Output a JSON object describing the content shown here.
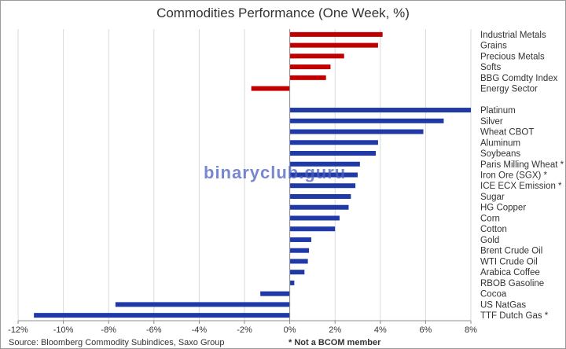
{
  "chart_data": {
    "type": "bar",
    "orientation": "horizontal",
    "title": "Commodities Performance (One Week, %)",
    "xlim": [
      -12,
      8
    ],
    "x_ticks": [
      "-12%",
      "-10%",
      "-8%",
      "-6%",
      "-4%",
      "-2%",
      "0%",
      "2%",
      "4%",
      "6%",
      "8%"
    ],
    "grid": "vertical",
    "groups": [
      {
        "color": "#c00000",
        "categories": [
          "Industrial Metals",
          "Grains",
          "Precious Metals",
          "Softs",
          "BBG Comdty Index",
          "Energy Sector"
        ],
        "values": [
          4.1,
          3.9,
          2.4,
          1.8,
          1.6,
          -1.7
        ]
      },
      {
        "color": "#1f3aa6",
        "categories": [
          "Platinum",
          "Silver",
          "Wheat CBOT",
          "Aluminum",
          "Soybeans",
          "Paris Milling Wheat *",
          "Iron Ore (SGX) *",
          "ICE ECX Emission *",
          "Sugar",
          "HG Copper",
          "Corn",
          "Cotton",
          "Gold",
          "Brent Crude Oil",
          "WTI Crude Oil",
          "Arabica Coffee",
          "RBOB Gasoline",
          "Cocoa",
          "US NatGas",
          "TTF Dutch Gas *"
        ],
        "values": [
          8.0,
          6.8,
          5.9,
          3.9,
          3.8,
          3.1,
          3.0,
          2.9,
          2.7,
          2.6,
          2.2,
          2.0,
          0.95,
          0.85,
          0.8,
          0.65,
          0.2,
          -1.3,
          -7.7,
          -11.3
        ]
      }
    ]
  },
  "source": "Source: Bloomberg Commodity Subindices, Saxo Group",
  "footnote": "* Not a BCOM member",
  "watermark": "binaryclub.guru"
}
